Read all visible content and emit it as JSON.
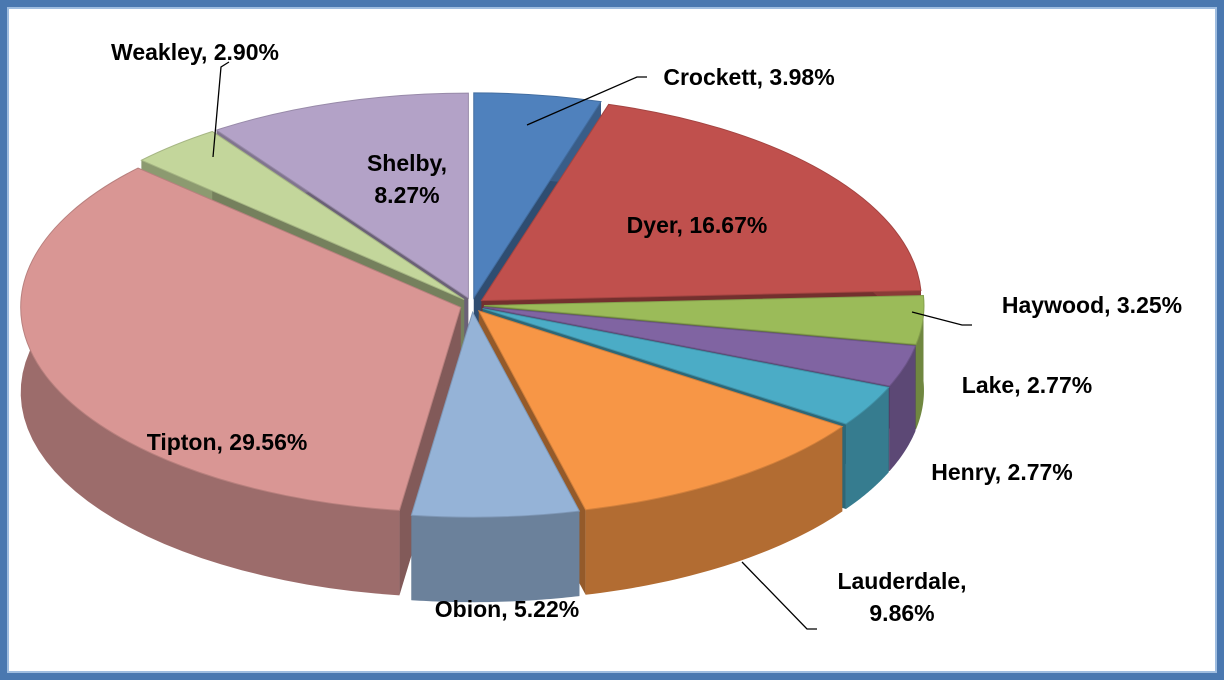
{
  "chart_data": {
    "type": "pie",
    "value_labels": [
      "Crockett, 3.98%",
      "Dyer, 16.67%",
      "Haywood, 3.25%",
      "Lake, 2.77%",
      "Henry, 2.77%",
      "Lauderdale, 9.86%",
      "Obion, 5.22%",
      "Tipton, 29.56%",
      "Weakley, 2.90%",
      "Shelby, 8.27%"
    ],
    "values": [
      3.98,
      16.67,
      3.25,
      2.77,
      2.77,
      9.86,
      5.22,
      29.56,
      2.9,
      8.27
    ],
    "colors": [
      "#4f81bd",
      "#c0504d",
      "#9bbb59",
      "#8064a2",
      "#4bacc6",
      "#f79646",
      "#95b3d7",
      "#d99694",
      "#c3d69b",
      "#b3a2c7"
    ]
  }
}
